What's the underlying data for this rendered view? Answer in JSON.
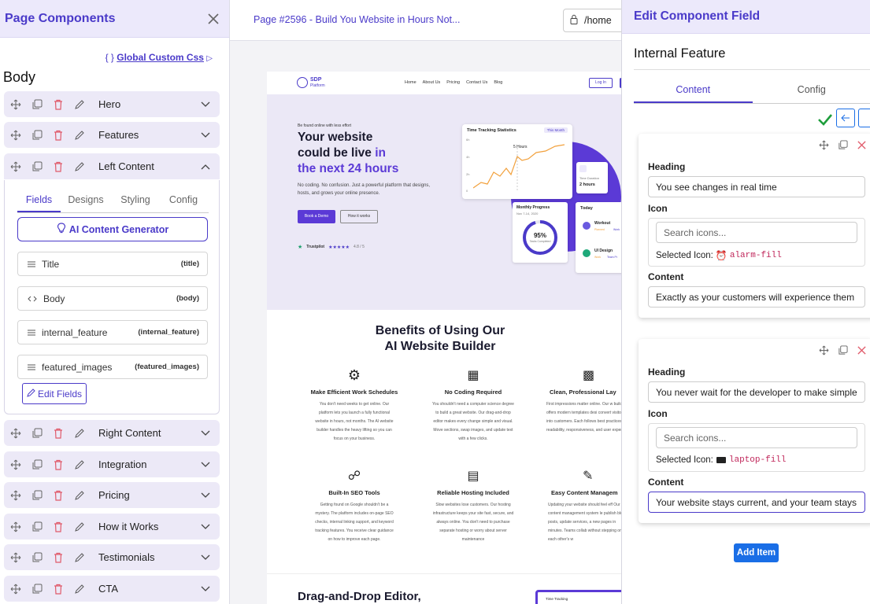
{
  "left_panel": {
    "title": "Page Components",
    "global_css_prefix": "{ }",
    "global_css_label": "Global Custom Css",
    "section_title": "Body",
    "rows_top": [
      "Hero",
      "Features"
    ],
    "open_row": "Left Content",
    "tabs": [
      "Fields",
      "Designs",
      "Styling",
      "Config"
    ],
    "ai_button": "AI Content Generator",
    "fields": [
      {
        "name": "Title",
        "key": "(title)",
        "icon": "lines-icon"
      },
      {
        "name": "Body",
        "key": "(body)",
        "icon": "code-icon"
      },
      {
        "name": "internal_feature",
        "key": "(internal_feature)",
        "icon": "lines-icon"
      },
      {
        "name": "featured_images",
        "key": "(featured_images)",
        "icon": "lines-icon"
      }
    ],
    "edit_fields": "Edit Fields",
    "rows_bottom": [
      "Right Content",
      "Integration",
      "Pricing",
      "How it Works",
      "Testimonials",
      "CTA"
    ]
  },
  "topbar": {
    "page_title": "Page #2596 - Build You Website in Hours Not...",
    "url": "/home"
  },
  "preview": {
    "brand": "SDP",
    "brand_sub": "Platform",
    "nav": [
      "Home",
      "About Us",
      "Pricing",
      "Contact Us",
      "Blog"
    ],
    "login": "Log In",
    "kicker": "Be found online with less effort",
    "hero_line1": "Your website",
    "hero_line2a": "could be live",
    "hero_line2b": "in",
    "hero_line3": "the next 24 hours",
    "hero_desc": "No coding. No confusion. Just a powerful platform that designs, hosts, and grows your online presence.",
    "btn_demo": "Book a Demo",
    "btn_how": "How it works",
    "trustpilot": "Trustpilot",
    "rating": "4.8 / 5",
    "chart_title": "Time Tracking Statistics",
    "chart_badge": "This Month",
    "chart_peak": "5 Hours",
    "chart_y": [
      "6h",
      "4h",
      "2h",
      "0"
    ],
    "time_duration_label": "Time Duration",
    "time_duration": "2 hours",
    "monthly_progress": "Monthly Progress",
    "monthly_date": "Nov 7-14, 2020",
    "progress_pct": "95%",
    "progress_label": "Tasks Completed",
    "progress_value": 0.95,
    "today": "Today",
    "today_items": [
      {
        "name": "Workout",
        "tags": [
          "Planned",
          "Work"
        ]
      },
      {
        "name": "UI Design",
        "tags": [
          "Work",
          "Team Pr"
        ]
      }
    ],
    "benefits_title1": "Benefits of Using Our",
    "benefits_title2": "AI Website Builder",
    "benefits": [
      {
        "title": "Make Efficient Work Schedules",
        "text": "You don't need weeks to get online. Our platform lets you launch a fully functional website in hours, not months. The AI website builder handles the heavy lifting so you can focus on your business.",
        "icon": "gear-clock-icon"
      },
      {
        "title": "No Coding Required",
        "text": "You shouldn't need a computer science degree to build a great website. Our drag-and-drop editor makes every change simple and visual. Move sections, swap images, and update text with a few clicks.",
        "icon": "code-window-icon"
      },
      {
        "title": "Clean, Professional Lay",
        "text": "First impressions matter online. Our w builder offers modern templates desi convert visitors into customers. Each follows best practices for readability, responsiveness, and user experie",
        "icon": "layout-icon"
      },
      {
        "title": "Built-In SEO Tools",
        "text": "Getting found on Google shouldn't be a mystery. The platform includes on-page SEO checks, internal linking support, and keyword tracking features. You receive clear guidance on how to improve each page.",
        "icon": "seo-icon"
      },
      {
        "title": "Reliable Hosting Included",
        "text": "Slow websites lose customers. Our hosting infrastructure keeps your site fast, secure, and always online. You don't need to purchase separate hosting or worry about server maintenance",
        "icon": "server-icon"
      },
      {
        "title": "Easy Content Managem",
        "text": "Updating your website should feel eff Our content management system le publish blog posts, update services, a new pages in minutes. Teams collab without stepping on each other's w",
        "icon": "content-icon"
      }
    ],
    "dnd_title": "Drag-and-Drop Editor,",
    "dnd_card_label": "Time Tracking"
  },
  "right_panel": {
    "title": "Edit Component Field",
    "subtitle": "Internal Feature",
    "tabs": [
      "Content",
      "Config"
    ],
    "items": [
      {
        "heading_label": "Heading",
        "heading": "You see changes in real time",
        "icon_label": "Icon",
        "search_placeholder": "Search icons...",
        "selected_prefix": "Selected Icon:",
        "selected_icon": "alarm-fill",
        "content_label": "Content",
        "content": "Exactly as your customers will experience them"
      },
      {
        "heading_label": "Heading",
        "heading": "You never wait for the developer to make simple",
        "icon_label": "Icon",
        "search_placeholder": "Search icons...",
        "selected_prefix": "Selected Icon:",
        "selected_icon": "laptop-fill",
        "content_label": "Content",
        "content": "Your website stays current, and your team stays"
      }
    ],
    "add_item": "Add Item"
  },
  "colors": {
    "accent": "#4a3ac9",
    "hero_bg": "#ebe8f6",
    "row_bg": "#ece9f7",
    "add_button": "#1a6ee6",
    "check": "#1e9e3c",
    "delete": "#e05a6a"
  }
}
